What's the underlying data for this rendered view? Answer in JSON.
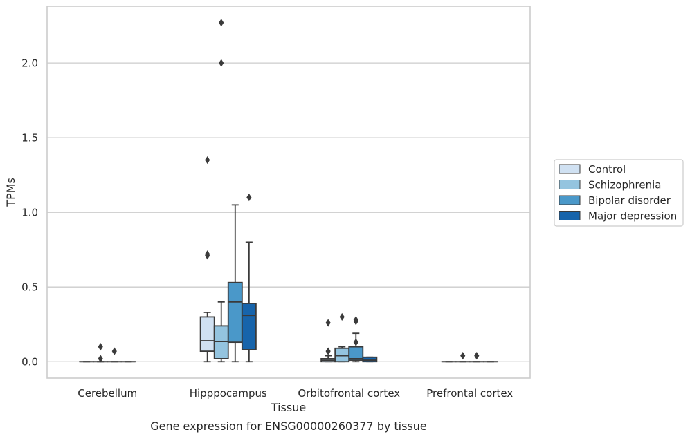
{
  "chart_data": {
    "type": "box",
    "title": "",
    "caption": "Gene expression for ENSG00000260377 by tissue",
    "xlabel": "Tissue",
    "ylabel": "TPMs",
    "ylim": [
      -0.11,
      2.38
    ],
    "yticks": [
      0.0,
      0.5,
      1.0,
      1.5,
      2.0
    ],
    "ytick_labels": [
      "0.0",
      "0.5",
      "1.0",
      "1.5",
      "2.0"
    ],
    "grid": "horizontal",
    "legend_position": "right",
    "categories": [
      "Cerebellum",
      "Hipppocampus",
      "Orbitofrontal cortex",
      "Prefrontal cortex"
    ],
    "series": [
      {
        "name": "Control",
        "color": "#d0e1f2",
        "boxes": [
          {
            "q1": 0,
            "median": 0,
            "q3": 0,
            "whisker_low": 0,
            "whisker_high": 0,
            "outliers": []
          },
          {
            "q1": 0.07,
            "median": 0.14,
            "q3": 0.3,
            "whisker_low": 0,
            "whisker_high": 0.33,
            "outliers": [
              0.71,
              0.72,
              1.35
            ]
          },
          {
            "q1": 0,
            "median": 0.01,
            "q3": 0.02,
            "whisker_low": 0,
            "whisker_high": 0.04,
            "outliers": [
              0.07,
              0.26
            ]
          },
          {
            "q1": 0,
            "median": 0,
            "q3": 0,
            "whisker_low": 0,
            "whisker_high": 0,
            "outliers": []
          }
        ]
      },
      {
        "name": "Schizophrenia",
        "color": "#94c4df",
        "boxes": [
          {
            "q1": 0,
            "median": 0,
            "q3": 0,
            "whisker_low": 0,
            "whisker_high": 0,
            "outliers": [
              0.02,
              0.1
            ]
          },
          {
            "q1": 0.02,
            "median": 0.135,
            "q3": 0.24,
            "whisker_low": 0,
            "whisker_high": 0.4,
            "outliers": [
              2.0,
              2.27
            ]
          },
          {
            "q1": 0,
            "median": 0.04,
            "q3": 0.09,
            "whisker_low": 0,
            "whisker_high": 0.1,
            "outliers": [
              0.3
            ]
          },
          {
            "q1": 0,
            "median": 0,
            "q3": 0,
            "whisker_low": 0,
            "whisker_high": 0,
            "outliers": [
              0.04
            ]
          }
        ]
      },
      {
        "name": "Bipolar disorder",
        "color": "#4a98c9",
        "boxes": [
          {
            "q1": 0,
            "median": 0,
            "q3": 0,
            "whisker_low": 0,
            "whisker_high": 0,
            "outliers": [
              0.07
            ]
          },
          {
            "q1": 0.13,
            "median": 0.4,
            "q3": 0.53,
            "whisker_low": 0,
            "whisker_high": 1.05,
            "outliers": []
          },
          {
            "q1": 0.01,
            "median": 0.02,
            "q3": 0.1,
            "whisker_low": 0,
            "whisker_high": 0.19,
            "outliers": [
              0.13,
              0.27,
              0.28
            ]
          },
          {
            "q1": 0,
            "median": 0,
            "q3": 0,
            "whisker_low": 0,
            "whisker_high": 0,
            "outliers": [
              0.04
            ]
          }
        ]
      },
      {
        "name": "Major depression",
        "color": "#1764ab",
        "boxes": [
          {
            "q1": 0,
            "median": 0,
            "q3": 0,
            "whisker_low": 0,
            "whisker_high": 0,
            "outliers": []
          },
          {
            "q1": 0.08,
            "median": 0.31,
            "q3": 0.39,
            "whisker_low": 0,
            "whisker_high": 0.8,
            "outliers": [
              1.1
            ]
          },
          {
            "q1": 0,
            "median": 0.01,
            "q3": 0.03,
            "whisker_low": 0,
            "whisker_high": 0.03,
            "outliers": []
          },
          {
            "q1": 0,
            "median": 0,
            "q3": 0,
            "whisker_low": 0,
            "whisker_high": 0,
            "outliers": []
          }
        ]
      }
    ]
  }
}
